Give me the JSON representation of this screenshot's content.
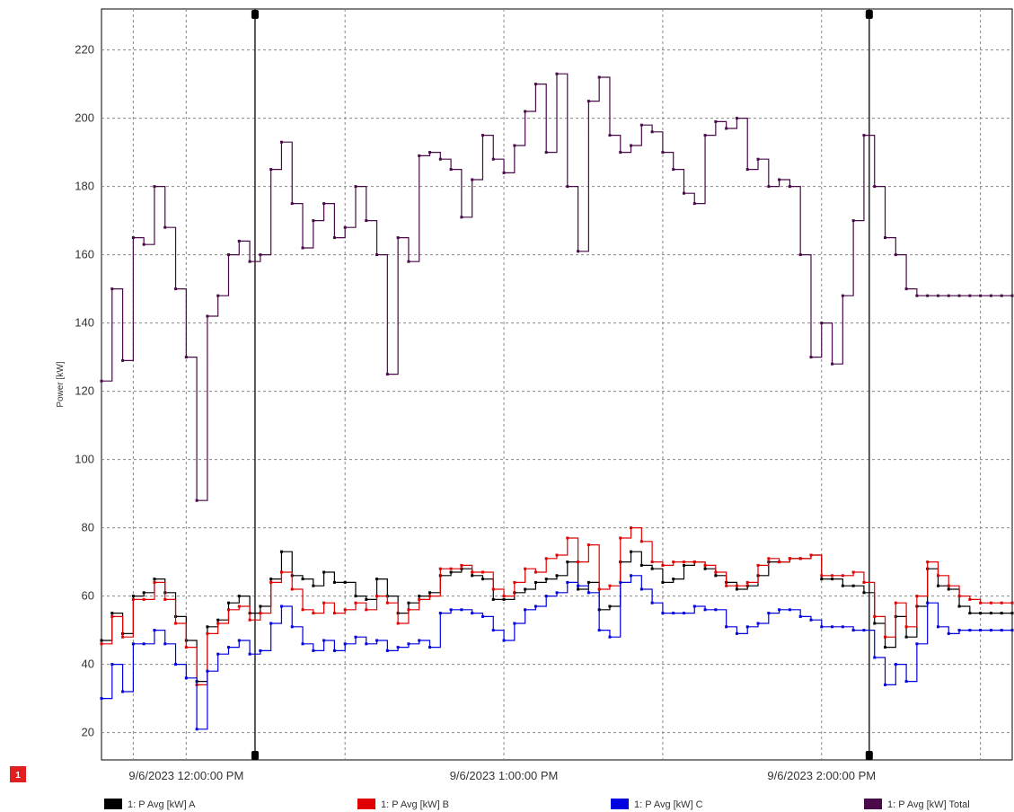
{
  "badge": "1",
  "chart_data": {
    "type": "line",
    "step": true,
    "ylabel": "Power [kW]",
    "xlabel": "",
    "ylim": [
      12,
      232
    ],
    "yticks": [
      20,
      40,
      60,
      80,
      100,
      120,
      140,
      160,
      180,
      200,
      220
    ],
    "xlim": [
      "9/6/2023 11:44:00 AM",
      "9/6/2023 2:36:00 PM"
    ],
    "xticks": [
      {
        "time": "11:50:00",
        "label": ""
      },
      {
        "time": "12:00:00",
        "label": "9/6/2023 12:00:00 PM"
      },
      {
        "time": "12:30:00",
        "label": ""
      },
      {
        "time": "13:00:00",
        "label": "9/6/2023 1:00:00 PM"
      },
      {
        "time": "13:30:00",
        "label": ""
      },
      {
        "time": "14:00:00",
        "label": "9/6/2023 2:00:00 PM"
      },
      {
        "time": "14:30:00",
        "label": ""
      }
    ],
    "cursors": [
      "12:13:00",
      "14:09:00"
    ],
    "grid": true,
    "legend_position": "bottom",
    "x": [
      "11:44",
      "11:46",
      "11:48",
      "11:50",
      "11:52",
      "11:54",
      "11:56",
      "11:58",
      "12:00",
      "12:02",
      "12:04",
      "12:06",
      "12:08",
      "12:10",
      "12:12",
      "12:14",
      "12:16",
      "12:18",
      "12:20",
      "12:22",
      "12:24",
      "12:26",
      "12:28",
      "12:30",
      "12:32",
      "12:34",
      "12:36",
      "12:38",
      "12:40",
      "12:42",
      "12:44",
      "12:46",
      "12:48",
      "12:50",
      "12:52",
      "12:54",
      "12:56",
      "12:58",
      "13:00",
      "13:02",
      "13:04",
      "13:06",
      "13:08",
      "13:10",
      "13:12",
      "13:14",
      "13:16",
      "13:18",
      "13:20",
      "13:22",
      "13:24",
      "13:26",
      "13:28",
      "13:30",
      "13:32",
      "13:34",
      "13:36",
      "13:38",
      "13:40",
      "13:42",
      "13:44",
      "13:46",
      "13:48",
      "13:50",
      "13:52",
      "13:54",
      "13:56",
      "13:58",
      "14:00",
      "14:02",
      "14:04",
      "14:06",
      "14:08",
      "14:10",
      "14:12",
      "14:14",
      "14:16",
      "14:18",
      "14:20",
      "14:22",
      "14:24",
      "14:26",
      "14:28",
      "14:30",
      "14:32",
      "14:34",
      "14:36"
    ],
    "series": [
      {
        "name": "1: P Avg [kW] A",
        "color": "#000000",
        "values": [
          47,
          55,
          49,
          60,
          61,
          65,
          61,
          54,
          47,
          35,
          51,
          53,
          58,
          60,
          55,
          57,
          65,
          73,
          66,
          65,
          63,
          67,
          64,
          64,
          60,
          59,
          65,
          60,
          55,
          58,
          60,
          61,
          66,
          67,
          68,
          66,
          65,
          59,
          59,
          61,
          62,
          64,
          65,
          66,
          70,
          62,
          64,
          56,
          57,
          70,
          73,
          69,
          68,
          64,
          65,
          69,
          70,
          68,
          66,
          64,
          62,
          63,
          66,
          70,
          70,
          71,
          71,
          72,
          65,
          65,
          63,
          63,
          61,
          52,
          45,
          54,
          48,
          57,
          68,
          63,
          62,
          57,
          55,
          55,
          55,
          55,
          55
        ]
      },
      {
        "name": "1: P Avg [kW] B",
        "color": "#e00000",
        "values": [
          46,
          54,
          48,
          59,
          59,
          64,
          59,
          52,
          45,
          34,
          49,
          52,
          56,
          57,
          53,
          55,
          64,
          67,
          62,
          56,
          55,
          58,
          55,
          56,
          58,
          56,
          60,
          58,
          52,
          56,
          59,
          60,
          68,
          68,
          69,
          67,
          67,
          62,
          60,
          64,
          68,
          67,
          71,
          72,
          77,
          70,
          75,
          62,
          63,
          77,
          80,
          76,
          70,
          69,
          70,
          70,
          70,
          69,
          67,
          63,
          63,
          64,
          69,
          71,
          70,
          71,
          71,
          72,
          66,
          66,
          66,
          67,
          64,
          54,
          48,
          58,
          51,
          60,
          70,
          66,
          63,
          60,
          59,
          58,
          58,
          58,
          58
        ]
      },
      {
        "name": "1: P Avg [kW] C",
        "color": "#0000e0",
        "values": [
          30,
          40,
          32,
          46,
          46,
          50,
          46,
          40,
          36,
          21,
          38,
          43,
          45,
          47,
          43,
          44,
          52,
          57,
          51,
          46,
          44,
          47,
          44,
          46,
          48,
          46,
          47,
          44,
          45,
          46,
          47,
          45,
          55,
          56,
          56,
          55,
          54,
          50,
          47,
          52,
          56,
          57,
          60,
          61,
          64,
          63,
          61,
          50,
          48,
          64,
          66,
          62,
          58,
          55,
          55,
          55,
          57,
          56,
          56,
          51,
          49,
          51,
          52,
          55,
          56,
          56,
          54,
          53,
          51,
          51,
          51,
          50,
          50,
          42,
          34,
          40,
          35,
          46,
          58,
          51,
          49,
          50,
          50,
          50,
          50,
          50,
          50
        ]
      },
      {
        "name": "1: P Avg [kW] Total",
        "color": "#4a0a4a",
        "values": [
          123,
          150,
          129,
          165,
          163,
          180,
          168,
          150,
          130,
          88,
          142,
          148,
          160,
          164,
          158,
          160,
          185,
          193,
          175,
          162,
          170,
          175,
          165,
          168,
          180,
          170,
          160,
          125,
          165,
          158,
          189,
          190,
          188,
          185,
          171,
          182,
          195,
          188,
          184,
          192,
          202,
          210,
          190,
          213,
          180,
          161,
          205,
          212,
          195,
          190,
          192,
          198,
          196,
          190,
          185,
          178,
          175,
          195,
          199,
          197,
          200,
          185,
          188,
          180,
          182,
          180,
          160,
          130,
          140,
          128,
          148,
          170,
          195,
          180,
          165,
          160,
          150,
          148,
          148,
          148,
          148,
          148,
          148,
          148,
          148,
          148,
          148
        ]
      }
    ]
  }
}
